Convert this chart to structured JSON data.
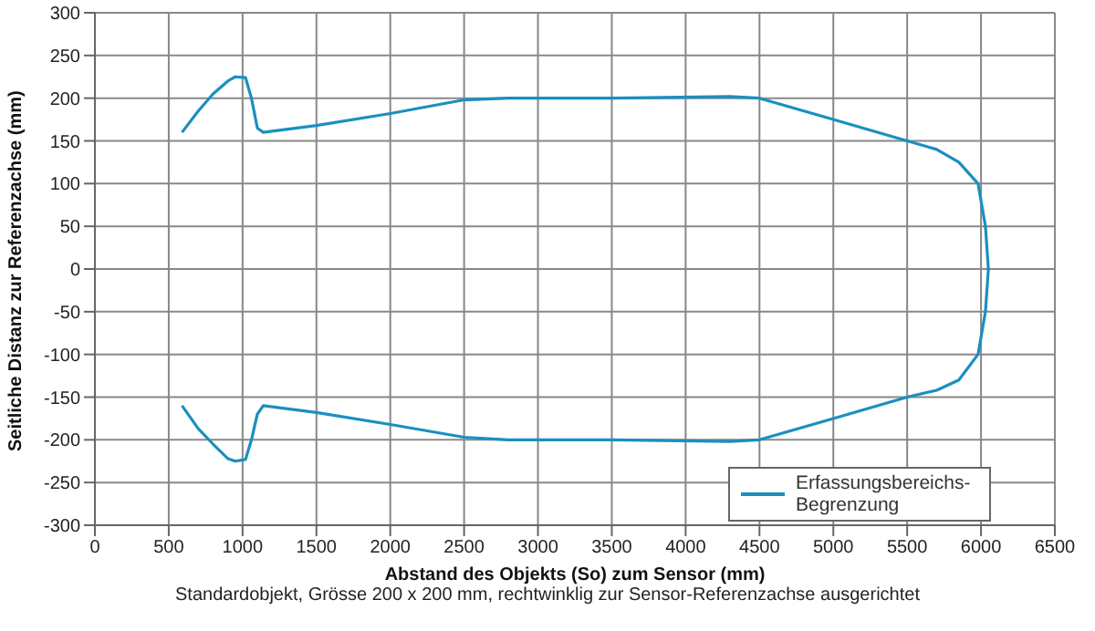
{
  "chart_data": {
    "type": "line",
    "xlabel": "Abstand des Objekts (So) zum Sensor (mm)",
    "ylabel": "Seitliche Distanz zur Referenzachse (mm)",
    "annotations": [
      "Standardobjekt, Grösse 200 x 200 mm, rechtwinklig zur Sensor-Referenzachse ausgerichtet"
    ],
    "xlim": [
      0,
      6500
    ],
    "xticks": [
      0,
      500,
      1000,
      1500,
      2000,
      2500,
      3000,
      3500,
      4000,
      4500,
      5000,
      5500,
      6000,
      6500
    ],
    "ylim": [
      -300,
      300
    ],
    "yticks": [
      -300,
      -250,
      -200,
      -150,
      -100,
      -50,
      0,
      50,
      100,
      150,
      200,
      250,
      300
    ],
    "grid": true,
    "legend": "bottom right",
    "marker": "none",
    "line_style": "solid",
    "series": [
      {
        "name": "Erfassungsbereichs-Begrenzung",
        "color": "#1a8fc0",
        "x": [
          590,
          700,
          800,
          900,
          950,
          1020,
          1060,
          1100,
          1140,
          1500,
          2000,
          2500,
          2800,
          3500,
          4300,
          4500,
          5000,
          5500,
          5700,
          5850,
          5980,
          6030,
          6050,
          6030,
          5980,
          5850,
          5700,
          5500,
          5000,
          4500,
          4300,
          3500,
          2800,
          2500,
          2000,
          1500,
          1140,
          1100,
          1060,
          1020,
          950,
          900,
          800,
          700,
          590
        ],
        "values": [
          160,
          185,
          205,
          220,
          225,
          224,
          200,
          165,
          160,
          168,
          182,
          198,
          200,
          200,
          202,
          200,
          175,
          150,
          140,
          125,
          100,
          50,
          0,
          -50,
          -100,
          -130,
          -142,
          -150,
          -175,
          -200,
          -202,
          -200,
          -200,
          -197,
          -182,
          -168,
          -160,
          -170,
          -200,
          -223,
          -225,
          -222,
          -205,
          -187,
          -160
        ]
      }
    ]
  }
}
